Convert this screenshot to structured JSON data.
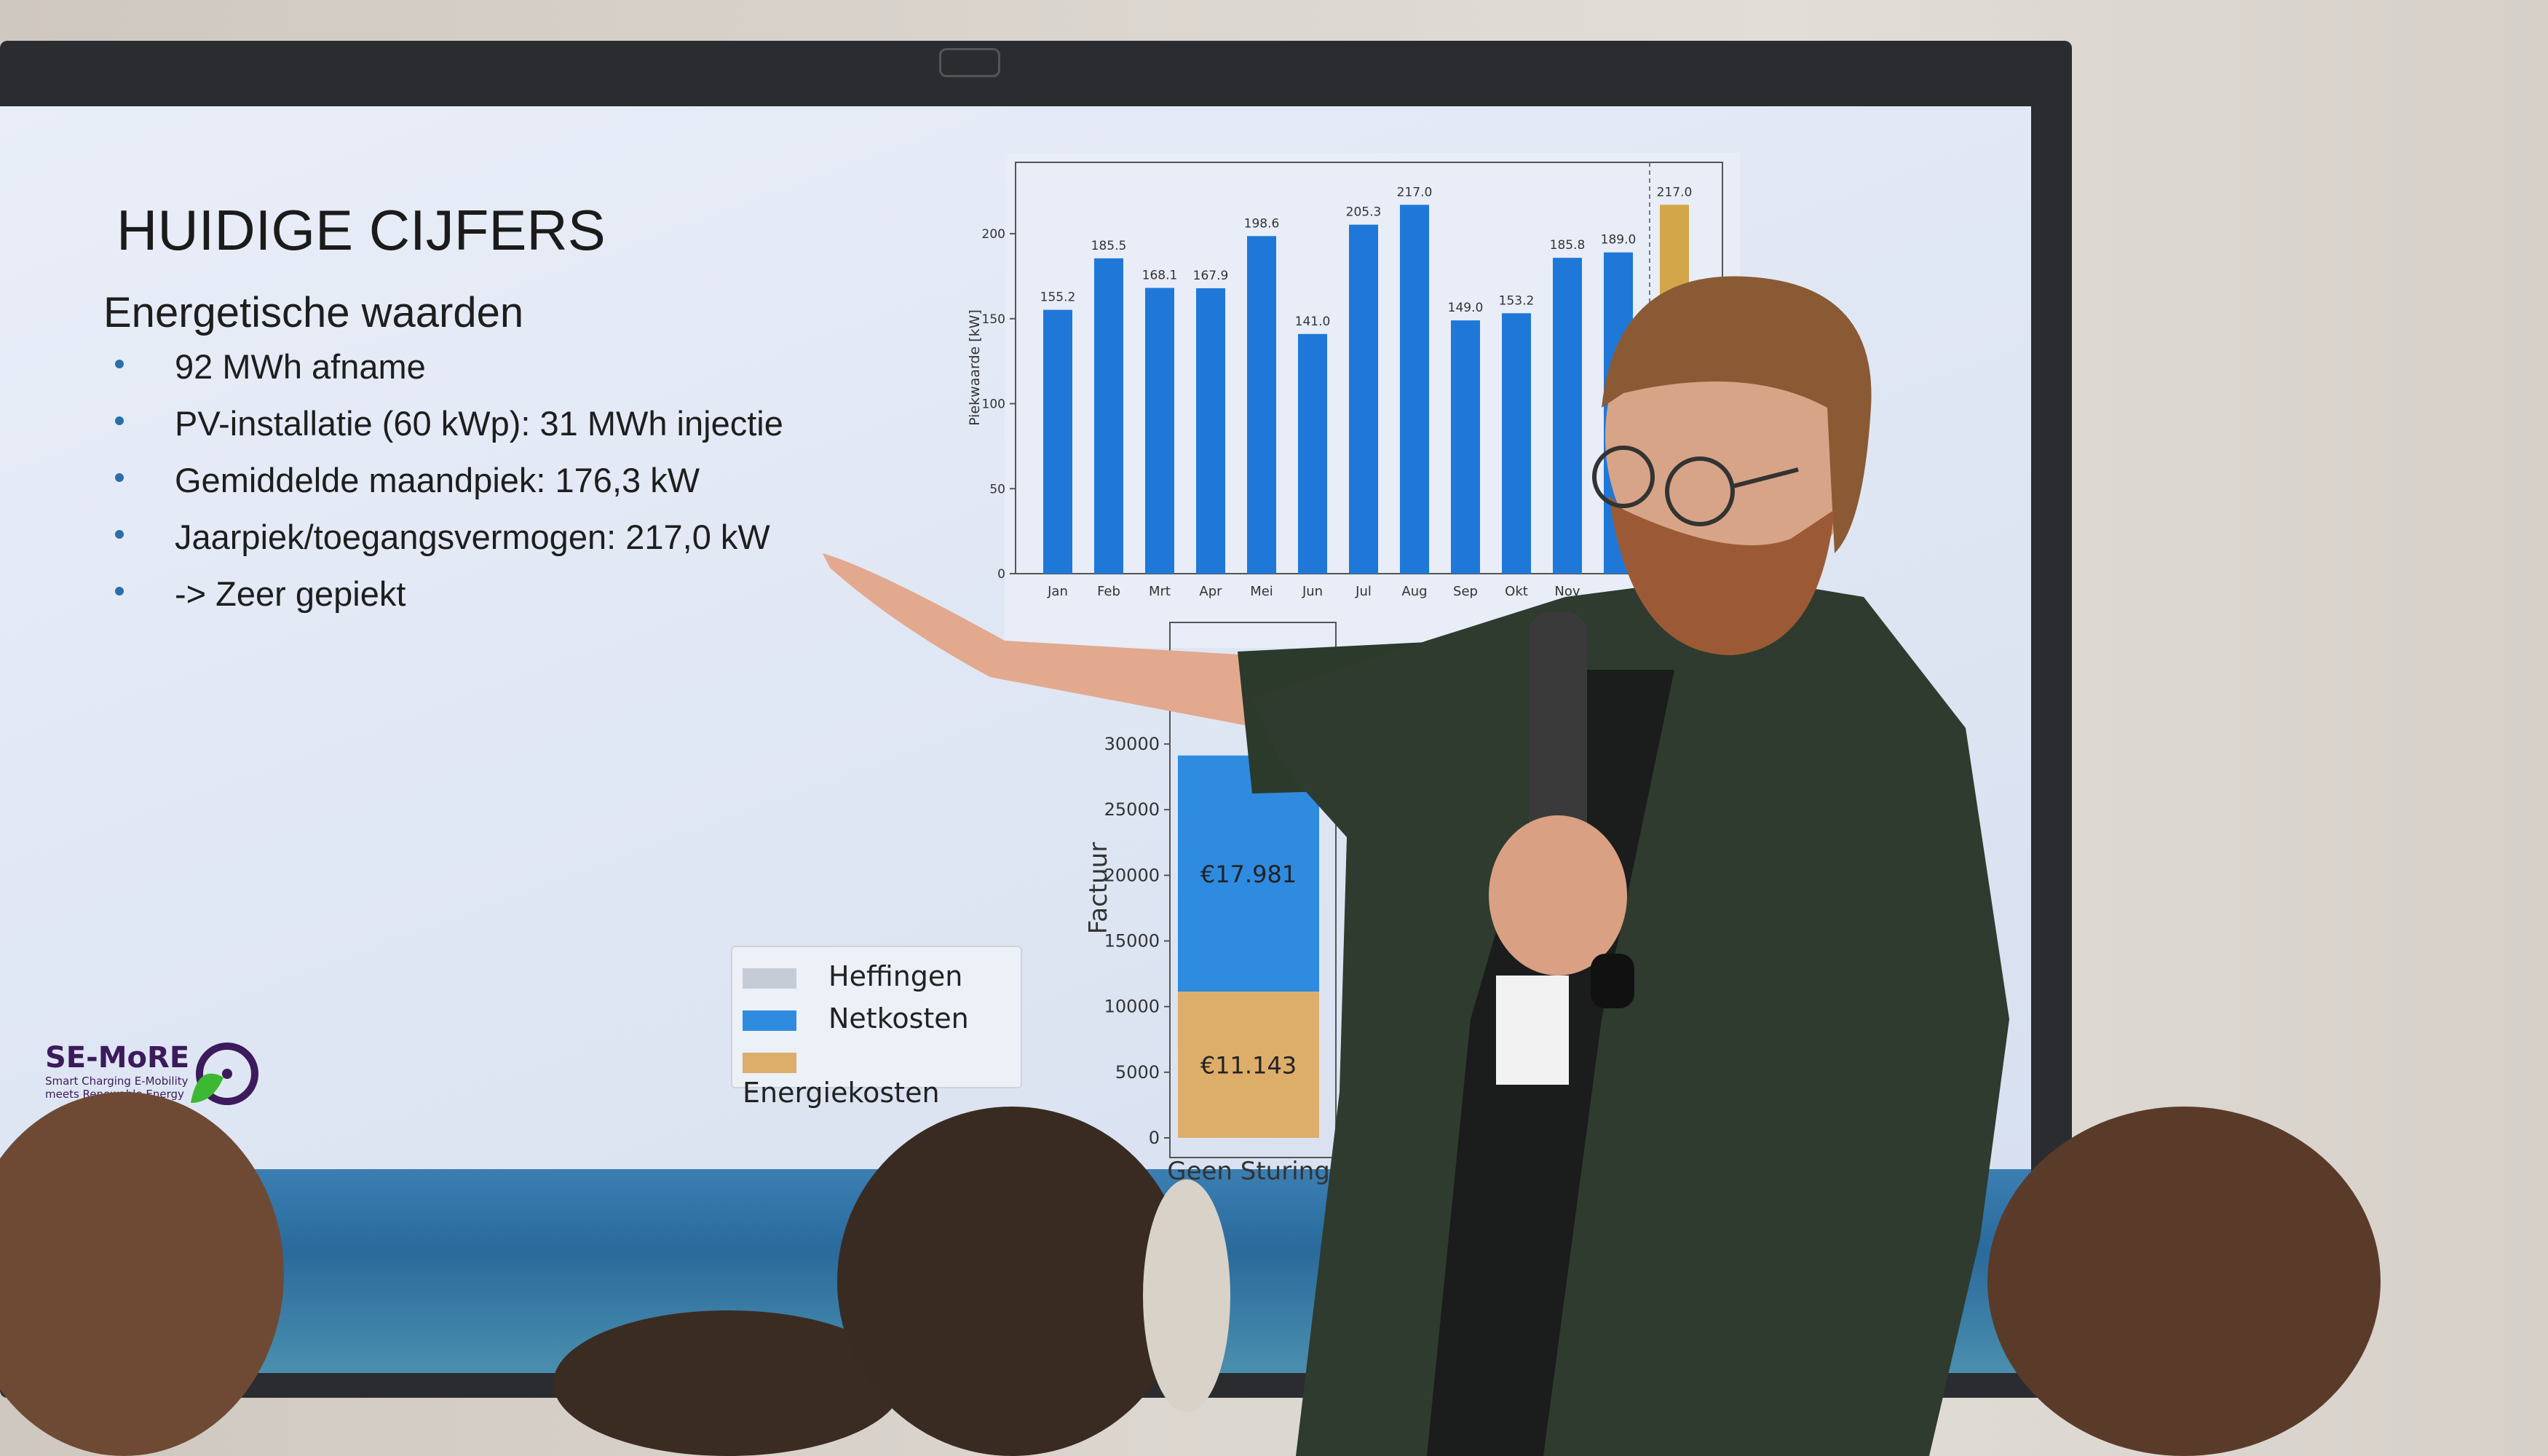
{
  "slide": {
    "title": "HUIDIGE CIJFERS",
    "subtitle": "Energetische waarden",
    "bullets": [
      "92 MWh afname",
      "PV-installatie (60 kWp): 31 MWh injectie",
      "Gemiddelde maandpiek: 176,3 kW",
      "Jaarpiek/toegangsvermogen: 217,0 kW",
      "-> Zeer gepiekt"
    ],
    "logo": {
      "name": "SE-MoRE",
      "tagline_1": "Smart Charging E-Mobility",
      "tagline_2": "meets Renewable Energy"
    }
  },
  "chart_data": [
    {
      "type": "bar",
      "ylabel": "Piekwaarde [kW]",
      "categories": [
        "Jan",
        "Feb",
        "Mrt",
        "Apr",
        "Mei",
        "Jun",
        "Jul",
        "Aug",
        "Sep",
        "Okt",
        "Nov",
        "",
        ""
      ],
      "values": [
        155.2,
        185.5,
        168.1,
        167.9,
        198.6,
        141.0,
        205.3,
        217.0,
        149.0,
        153.2,
        185.8,
        189.0,
        217.0
      ],
      "value_labels": [
        "155.2",
        "185.5",
        "168.1",
        "167.9",
        "198.6",
        "141.0",
        "205.3",
        "217.0",
        "149.0",
        "153.2",
        "185.8",
        "189.0",
        "217.0"
      ],
      "bar_colors": [
        "#1f78d8",
        "#1f78d8",
        "#1f78d8",
        "#1f78d8",
        "#1f78d8",
        "#1f78d8",
        "#1f78d8",
        "#1f78d8",
        "#1f78d8",
        "#1f78d8",
        "#1f78d8",
        "#1f78d8",
        "#d4a64a"
      ],
      "yticks": [
        0,
        50,
        100,
        150,
        200
      ],
      "ylim": [
        0,
        240
      ],
      "grid": false
    },
    {
      "type": "bar",
      "stacked": true,
      "ylabel": "Factuur",
      "categories": [
        "Geen Sturing"
      ],
      "series": [
        {
          "name": "Energiekosten",
          "values": [
            11143
          ],
          "label": "€11.143",
          "color": "#dcae6a"
        },
        {
          "name": "Netkosten",
          "values": [
            17981
          ],
          "label": "€17.981",
          "color": "#2f8be0"
        },
        {
          "name": "Heffingen",
          "values": [
            0
          ],
          "label": "",
          "color": "#c5ccd8"
        }
      ],
      "yticks": [
        0,
        5000,
        10000,
        15000,
        20000,
        25000,
        30000
      ],
      "ytick_labels": [
        "0",
        "5000",
        "10000",
        "15000",
        "20000",
        "25000",
        "30000"
      ],
      "ylim": [
        0,
        31000
      ],
      "legend": [
        "Heffingen",
        "Netkosten",
        "Energiekosten"
      ],
      "legend_placement": "left"
    }
  ]
}
